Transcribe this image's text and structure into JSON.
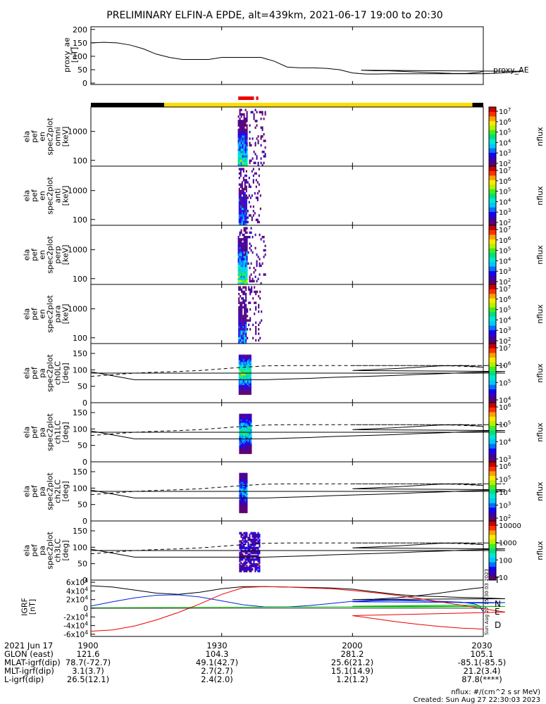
{
  "title": "PRELIMINARY ELFIN-A EPDE, alt=439km, 2021-06-17 19:00 to 20:30",
  "colors": {
    "ae_line": "#000000",
    "bar_black": "#000000",
    "bar_yellow": "#ffdd00",
    "bar_red": "#ee0000",
    "field_N": "#0022dd",
    "field_E": "#00bb00",
    "field_D": "#ee0000",
    "field_T": "#000000"
  },
  "colormap": [
    "#ffffff",
    "#5b0070",
    "#3a00aa",
    "#1800ff",
    "#0070ff",
    "#00c8ff",
    "#00e8d0",
    "#00e080",
    "#40ee20",
    "#b8f000",
    "#ffe800",
    "#ffa000",
    "#ff3000",
    "#cc0000"
  ],
  "chart_data": [
    {
      "id": "ae",
      "type": "line",
      "ylabel": [
        "proxy_ae",
        "[nT]"
      ],
      "legend": "proxy_AE",
      "yticks": [
        "0",
        "50",
        "100",
        "150",
        "200"
      ],
      "ylim": [
        -5,
        210
      ],
      "x": [
        1900,
        1903,
        1906,
        1909,
        1912,
        1915,
        1918,
        1921,
        1924,
        1927,
        1930,
        1933,
        1936,
        1939,
        1942,
        1945,
        1948,
        1951,
        1954,
        1957,
        1960,
        1963,
        1966,
        1969,
        1972,
        1975,
        1978,
        1981,
        1984,
        1987,
        1990,
        1993,
        1996,
        1999,
        2002,
        2005,
        2008,
        2011,
        2014,
        2017,
        2020,
        2023,
        2026,
        2029,
        2030
      ],
      "y": [
        150,
        152,
        150,
        142,
        128,
        108,
        96,
        88,
        88,
        88,
        96,
        96,
        96,
        96,
        82,
        60,
        57,
        57,
        55,
        50,
        38,
        34,
        34,
        35,
        35,
        35,
        35,
        35,
        35,
        35,
        35,
        37,
        40,
        44,
        48,
        46,
        46,
        44,
        42,
        40,
        38,
        36,
        36,
        40,
        44
      ]
    },
    {
      "id": "status_bar",
      "type": "bar",
      "segments": [
        {
          "x0": 1900,
          "x1": 1916.8,
          "color": "black"
        },
        {
          "x0": 1916.8,
          "x1": 2027.5,
          "color": "yellow"
        },
        {
          "x0": 2027.5,
          "x1": 2030,
          "color": "black"
        }
      ],
      "red_segments": [
        {
          "x0": 1933.8,
          "x1": 1937.4
        },
        {
          "x0": 1937.9,
          "x1": 1938.4
        }
      ]
    },
    {
      "id": "spec_omni",
      "type": "heatmap",
      "ylabel": [
        "ela",
        "pef",
        "en",
        "spec2plot",
        "omni",
        "[keV]"
      ],
      "yticks": [
        "100",
        "1000"
      ],
      "ylim": [
        63,
        7000
      ],
      "zlabel": "nflux",
      "zticks": [
        "10^2",
        "10^3",
        "10^4",
        "10^5",
        "10^6",
        "10^7"
      ],
      "zlim": [
        100,
        10000000
      ],
      "x_start": 1933.7,
      "x_end": 1940.2,
      "peak": 9,
      "core_end": 1935.8
    },
    {
      "id": "spec_anti",
      "type": "heatmap",
      "ylabel": [
        "ela",
        "pef",
        "en",
        "spec2plot",
        "anti",
        "[keV]"
      ],
      "yticks": [
        "100",
        "1000"
      ],
      "ylim": [
        63,
        7000
      ],
      "zlabel": "nflux",
      "zticks": [
        "10^2",
        "10^3",
        "10^4",
        "10^5",
        "10^6",
        "10^7"
      ],
      "zlim": [
        100,
        10000000
      ],
      "x_start": 1933.9,
      "x_end": 1939.0,
      "peak": 6,
      "core_end": 1935.6
    },
    {
      "id": "spec_perp",
      "type": "heatmap",
      "ylabel": [
        "ela",
        "pef",
        "en",
        "spec2plot",
        "perp",
        "[keV]"
      ],
      "yticks": [
        "100",
        "1000"
      ],
      "ylim": [
        63,
        7000
      ],
      "zlabel": "nflux",
      "zticks": [
        "10^2",
        "10^3",
        "10^4",
        "10^5",
        "10^6",
        "10^7"
      ],
      "zlim": [
        100,
        10000000
      ],
      "x_start": 1933.7,
      "x_end": 1940.2,
      "peak": 10,
      "core_end": 1935.9
    },
    {
      "id": "spec_para",
      "type": "heatmap",
      "ylabel": [
        "ela",
        "pef",
        "en",
        "spec2plot",
        "para",
        "[keV]"
      ],
      "yticks": [
        "100",
        "1000"
      ],
      "ylim": [
        63,
        7000
      ],
      "zlabel": "nflux",
      "zticks": [
        "10^2",
        "10^3",
        "10^4",
        "10^5",
        "10^6",
        "10^7"
      ],
      "zlim": [
        100,
        10000000
      ],
      "x_start": 1933.8,
      "x_end": 1939.2,
      "peak": 6,
      "core_end": 1935.6
    },
    {
      "id": "pa_ch0",
      "type": "heatmap",
      "ylabel": [
        "ela",
        "pef",
        "pa",
        "spec2plot",
        "ch0LC",
        "[deg]"
      ],
      "yticks": [
        "0",
        "50",
        "100",
        "150"
      ],
      "ylim": [
        0,
        180
      ],
      "zlabel": "nflux",
      "zticks": [
        "10^4",
        "10^5",
        "10^6",
        "10^7"
      ],
      "zlim": [
        3000,
        10000000
      ],
      "x_start": 1933.9,
      "x_end": 1936.9,
      "peak": 9
    },
    {
      "id": "pa_ch1",
      "type": "heatmap",
      "ylabel": [
        "ela",
        "pef",
        "pa",
        "spec2plot",
        "ch1LC",
        "[deg]"
      ],
      "yticks": [
        "0",
        "50",
        "100",
        "150"
      ],
      "ylim": [
        0,
        180
      ],
      "zlabel": "nflux",
      "zticks": [
        "10^3",
        "10^4",
        "10^5",
        "10^6"
      ],
      "zlim": [
        1000,
        3000000
      ],
      "x_start": 1934.0,
      "x_end": 1936.8,
      "peak": 8
    },
    {
      "id": "pa_ch2",
      "type": "heatmap",
      "ylabel": [
        "ela",
        "pef",
        "pa",
        "spec2plot",
        "ch2LC",
        "[deg]"
      ],
      "yticks": [
        "0",
        "50",
        "100",
        "150"
      ],
      "ylim": [
        0,
        180
      ],
      "zlabel": "nflux",
      "zticks": [
        "10^2",
        "10^3",
        "10^4",
        "10^5",
        "10^6"
      ],
      "zlim": [
        100,
        3000000
      ],
      "x_start": 1934.0,
      "x_end": 1935.8,
      "peak": 6
    },
    {
      "id": "pa_ch3",
      "type": "heatmap",
      "ylabel": [
        "ela",
        "pef",
        "pa",
        "spec2plot",
        "ch3LC",
        "[deg]"
      ],
      "yticks": [
        "0",
        "50",
        "100",
        "150"
      ],
      "ylim": [
        0,
        180
      ],
      "zlabel": "nflux",
      "zticks": [
        "10",
        "100",
        "1000",
        "10000"
      ],
      "zlim": [
        10,
        30000
      ],
      "x_start": 1934.0,
      "x_end": 1939.0,
      "peak": 4
    },
    {
      "id": "igrf",
      "type": "line",
      "ylabel": [
        "IGRF",
        "[nT]"
      ],
      "yticks": [
        "-6x10^4",
        "-4x10^4",
        "-2x10^4",
        "0",
        "2x10^4",
        "4x10^4",
        "6x10^4"
      ],
      "ylim": [
        -65000,
        65000
      ],
      "x": [
        1900,
        1905,
        1910,
        1915,
        1920,
        1925,
        1930,
        1935,
        1940,
        1945,
        1950,
        1955,
        1960,
        1965,
        1970,
        1975,
        1980,
        1985,
        1990,
        1995,
        2000,
        2005,
        2010,
        2015,
        2020,
        2025,
        2028,
        2029,
        2030
      ],
      "series": [
        {
          "name": "T",
          "values": [
            52000,
            49000,
            42000,
            35000,
            32000,
            37000,
            45000,
            50000,
            50000,
            49000,
            48000,
            47000,
            44000,
            38000,
            32000,
            28000,
            27000,
            25000,
            24000,
            22000,
            20000,
            21000,
            24000,
            29000,
            35000,
            42000,
            46000,
            47000,
            48000
          ]
        },
        {
          "name": "N",
          "values": [
            5000,
            15000,
            24000,
            30000,
            31000,
            26000,
            17000,
            8000,
            3000,
            3000,
            6000,
            11000,
            16000,
            19000,
            20000,
            18000,
            15000,
            13000,
            12000,
            13000,
            15000,
            17000,
            18000,
            17000,
            16000,
            14000,
            10000,
            6000,
            -8000
          ]
        },
        {
          "name": "E",
          "values": [
            1000,
            1200,
            1400,
            1600,
            1800,
            2000,
            2200,
            2400,
            2600,
            2800,
            2900,
            3000,
            3000,
            3000,
            3000,
            3100,
            3300,
            3600,
            3900,
            4300,
            4700,
            5200,
            5700,
            6200,
            6700,
            7200,
            7300,
            6000,
            3000
          ]
        },
        {
          "name": "D",
          "values": [
            -53000,
            -50000,
            -41000,
            -27000,
            -10000,
            10000,
            32000,
            48000,
            50000,
            49000,
            47000,
            45000,
            41000,
            36000,
            30000,
            23000,
            15000,
            7000,
            -1000,
            -9000,
            -17000,
            -24000,
            -31000,
            -37000,
            -42000,
            -46000,
            -47000,
            -48000,
            -48000
          ]
        }
      ]
    },
    {
      "id": "pa_lines",
      "type": "line",
      "x": [
        1900,
        1905,
        1910,
        1915,
        1920,
        1925,
        1930,
        1935,
        1940,
        1945,
        1950,
        1955,
        1960,
        1965,
        1970,
        1975,
        1980,
        1985,
        1990,
        1995,
        2000,
        2005,
        2010,
        2015,
        2020,
        2025,
        2030
      ],
      "series": [
        {
          "values": [
            94,
            82,
            70,
            70,
            70,
            70,
            70,
            70,
            70,
            72,
            74,
            77,
            79,
            81,
            83,
            86,
            88,
            91,
            93,
            95,
            98,
            101,
            104,
            108,
            112,
            113,
            108
          ]
        },
        {
          "values": [
            80,
            85,
            90,
            93,
            95,
            98,
            103,
            108,
            112,
            113,
            113,
            113,
            113,
            113,
            113,
            113,
            113,
            113,
            113,
            113,
            113,
            113,
            113,
            113,
            113,
            111,
            108
          ]
        },
        {
          "values": [
            90,
            90,
            90,
            90,
            90,
            90,
            90,
            90,
            90,
            90,
            90,
            90,
            90,
            90,
            90,
            90,
            90,
            90,
            90,
            90,
            90,
            90,
            90,
            90,
            90,
            90,
            90
          ]
        }
      ]
    }
  ],
  "xaxis": {
    "range": [
      1900,
      2030
    ],
    "ticks": [
      1900,
      1930,
      2000,
      2030
    ],
    "tick_labels": [
      "1900",
      "1930",
      "2000",
      "2030"
    ]
  },
  "footer": {
    "rows": [
      {
        "label": "2021 Jun 17",
        "v1": "1900",
        "v2": "1930",
        "v3": "2000",
        "v4": "2030"
      },
      {
        "label": "GLON (east)",
        "v1": "121.6",
        "v2": "104.3",
        "v3": "281.2",
        "v4": "105.1"
      },
      {
        "label": "MLAT-igrf(dip)",
        "v1": "78.7(-72.7)",
        "v2": "49.1(42.7)",
        "v3": "25.6(21.2)",
        "v4": "-85.1(-85.5)"
      },
      {
        "label": "MLT-igrf(dip)",
        "v1": "3.1(3.7)",
        "v2": "2.7(2.7)",
        "v3": "15.1(14.9)",
        "v4": "21.2(3.4)"
      },
      {
        "label": "L-igrf(dip)",
        "v1": "26.5(12.1)",
        "v2": "2.4(2.0)",
        "v3": "1.2(1.2)",
        "v4": "87.8(****)"
      }
    ],
    "units_note": "nflux: #/(cm^2 s sr MeV)",
    "created": "Created: Sun Aug 27 22:30:03 2023",
    "side_stamp": "Sun Aug 27 15:30:03 2023"
  }
}
